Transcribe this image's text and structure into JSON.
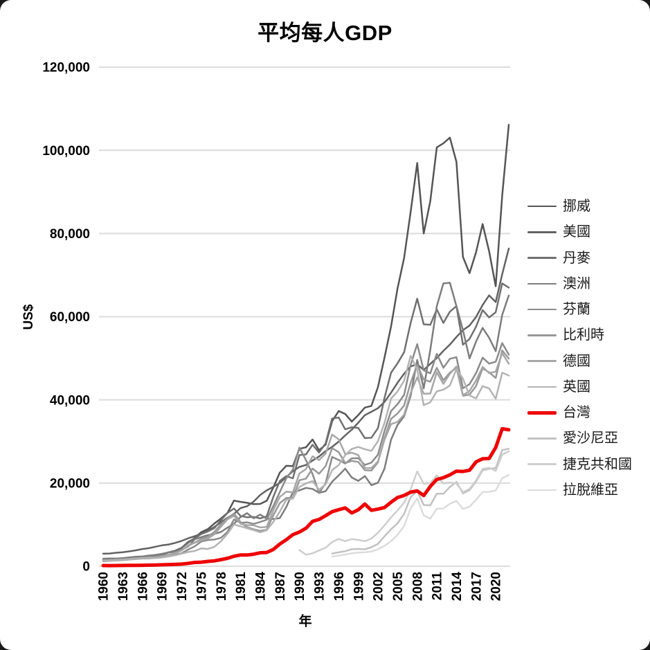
{
  "window": {
    "background": "#ffffff",
    "corner_backdrop": "#1a1a1a"
  },
  "chart_data": {
    "type": "line",
    "title": "平均每人GDP",
    "xlabel": "年",
    "ylabel": "US$",
    "grid": true,
    "grid_color": "#dcdcdc",
    "legend_position": "right",
    "xlim": [
      1960,
      2022
    ],
    "ylim": [
      0,
      120000
    ],
    "x_tick_values": [
      1960,
      1963,
      1966,
      1969,
      1972,
      1975,
      1978,
      1981,
      1984,
      1987,
      1990,
      1993,
      1996,
      1999,
      2002,
      2005,
      2008,
      2011,
      2014,
      2017,
      2020
    ],
    "y_tick_values": [
      0,
      20000,
      40000,
      60000,
      80000,
      100000,
      120000
    ],
    "y_tick_labels": [
      "0",
      "20,000",
      "40,000",
      "60,000",
      "80,000",
      "100,000",
      "120,000"
    ],
    "series": [
      {
        "name": "挪威",
        "color": "#555555",
        "line_width": 2.5,
        "start_year": 1960,
        "highlight": false,
        "values": [
          1441,
          1560,
          1667,
          1775,
          1937,
          2164,
          2323,
          2485,
          2592,
          2799,
          3306,
          3736,
          4430,
          5689,
          6811,
          8204,
          8927,
          10261,
          11461,
          12813,
          15772,
          15478,
          15240,
          14936,
          14977,
          15749,
          18883,
          22506,
          24150,
          24061,
          28243,
          28599,
          30468,
          27881,
          29238,
          34875,
          37322,
          36621,
          34790,
          36346,
          38147,
          38554,
          43084,
          50116,
          57618,
          66810,
          74148,
          85171,
          96944,
          80017,
          87770,
          100711,
          101668,
          103059,
          97200,
          74356,
          70461,
          75497,
          82268,
          75720,
          67330,
          89154,
          106149
        ]
      },
      {
        "name": "美國",
        "color": "#626262",
        "line_width": 2.5,
        "start_year": 1960,
        "highlight": false,
        "values": [
          3007,
          3067,
          3244,
          3375,
          3574,
          3828,
          4146,
          4336,
          4696,
          5032,
          5234,
          5609,
          6094,
          6726,
          7226,
          7801,
          8592,
          9453,
          10565,
          11674,
          12575,
          13976,
          14434,
          15544,
          17121,
          18237,
          19071,
          20039,
          21417,
          22857,
          23889,
          24342,
          25419,
          26387,
          27695,
          28691,
          29968,
          31459,
          32854,
          34515,
          36330,
          37134,
          37998,
          39490,
          41725,
          44123,
          46302,
          48050,
          48570,
          47195,
          48651,
          50066,
          51784,
          53291,
          55124,
          56763,
          57867,
          59915,
          62805,
          65120,
          63528,
          70219,
          76399
        ]
      },
      {
        "name": "丹麥",
        "color": "#707070",
        "line_width": 2.5,
        "start_year": 1960,
        "highlight": false,
        "values": [
          1365,
          1458,
          1582,
          1667,
          1877,
          2096,
          2281,
          2428,
          2577,
          2917,
          3366,
          3706,
          4420,
          5891,
          6655,
          7751,
          8349,
          9146,
          11068,
          12823,
          13886,
          12078,
          11779,
          11871,
          11496,
          12006,
          16606,
          20511,
          21662,
          21145,
          26732,
          26880,
          29216,
          27343,
          29540,
          35520,
          35757,
          32921,
          33420,
          33262,
          30804,
          30897,
          33228,
          40458,
          46512,
          48800,
          51470,
          58487,
          64322,
          58163,
          58041,
          61753,
          58507,
          61191,
          62549,
          53255,
          54664,
          57610,
          61599,
          59822,
          61063,
          68008,
          66983
        ]
      },
      {
        "name": "澳洲",
        "color": "#7d7d7d",
        "line_width": 2.5,
        "start_year": 1960,
        "highlight": false,
        "values": [
          1810,
          1877,
          1852,
          1964,
          2128,
          2278,
          2339,
          2576,
          2724,
          2990,
          3305,
          3496,
          3945,
          4764,
          6473,
          6993,
          7480,
          7767,
          8240,
          9282,
          10195,
          11834,
          12767,
          11519,
          12432,
          11438,
          11367,
          11562,
          14243,
          17797,
          18247,
          18847,
          18592,
          17660,
          18046,
          20320,
          21861,
          23469,
          21319,
          20533,
          21679,
          19491,
          20082,
          23447,
          30431,
          33999,
          36045,
          40960,
          49602,
          42772,
          52022,
          62518,
          68012,
          68150,
          62511,
          56755,
          49971,
          54028,
          57305,
          54941,
          51720,
          60443,
          65100
        ]
      },
      {
        "name": "芬蘭",
        "color": "#8b8b8b",
        "line_width": 2.5,
        "start_year": 1960,
        "highlight": false,
        "values": [
          1179,
          1327,
          1417,
          1522,
          1708,
          1882,
          2010,
          2034,
          1999,
          2216,
          2466,
          2737,
          3128,
          4007,
          4771,
          5944,
          6306,
          6424,
          6820,
          8274,
          11245,
          10456,
          10546,
          10192,
          10634,
          11185,
          14434,
          17832,
          21170,
          23254,
          28507,
          25522,
          22171,
          17608,
          19955,
          26275,
          25546,
          24681,
          25944,
          25979,
          24347,
          24913,
          26823,
          32488,
          37321,
          38969,
          41217,
          48414,
          53401,
          47107,
          46392,
          51082,
          47710,
          49878,
          50260,
          42784,
          43784,
          46412,
          50152,
          48712,
          49161,
          53655,
          50872
        ]
      },
      {
        "name": "比利時",
        "color": "#989898",
        "line_width": 2.5,
        "start_year": 1960,
        "highlight": false,
        "values": [
          1274,
          1349,
          1438,
          1536,
          1708,
          1854,
          1986,
          2126,
          2282,
          2516,
          2762,
          3085,
          3810,
          4872,
          5690,
          6563,
          7090,
          8253,
          10094,
          11517,
          12677,
          10579,
          9402,
          8895,
          8514,
          8778,
          12215,
          15160,
          16412,
          16469,
          20675,
          21070,
          23481,
          22231,
          24080,
          28394,
          27432,
          24812,
          25336,
          25075,
          23099,
          23003,
          25006,
          30743,
          35429,
          36734,
          38644,
          44110,
          48425,
          44880,
          44364,
          47702,
          44720,
          46560,
          47700,
          40991,
          41257,
          43329,
          47545,
          46642,
          45255,
          51875,
          49927
        ]
      },
      {
        "name": "德國",
        "color": "#a6a6a6",
        "line_width": 2.5,
        "start_year": 1960,
        "highlight": false,
        "values": [
          1182,
          1311,
          1399,
          1462,
          1591,
          1733,
          1843,
          1862,
          2003,
          2263,
          2747,
          3194,
          3813,
          5064,
          5639,
          6236,
          6634,
          7682,
          9482,
          11278,
          12138,
          10211,
          9892,
          9846,
          9313,
          9430,
          13452,
          16683,
          17931,
          17766,
          22304,
          23358,
          26438,
          25523,
          27094,
          31658,
          30486,
          26973,
          27289,
          26726,
          23636,
          23607,
          25205,
          30360,
          34166,
          34697,
          36447,
          41640,
          45427,
          41486,
          41532,
          46645,
          43856,
          46286,
          48024,
          41103,
          42136,
          44653,
          47939,
          46468,
          46773,
          51204,
          48718
        ]
      },
      {
        "name": "英國",
        "color": "#b3b3b3",
        "line_width": 2.5,
        "start_year": 1960,
        "highlight": false,
        "values": [
          1398,
          1472,
          1526,
          1613,
          1748,
          1874,
          1987,
          2059,
          1952,
          2101,
          2348,
          2650,
          3030,
          3426,
          3666,
          4300,
          4138,
          4681,
          5977,
          7805,
          10032,
          9599,
          9146,
          8692,
          8179,
          8652,
          10611,
          13119,
          15987,
          16239,
          19095,
          19900,
          20487,
          18389,
          19709,
          23123,
          24332,
          26736,
          28214,
          28670,
          28150,
          27745,
          30057,
          34419,
          40290,
          42030,
          44600,
          50567,
          47287,
          38713,
          39436,
          42038,
          42463,
          43449,
          47426,
          45071,
          41064,
          40361,
          43306,
          42747,
          40285,
          46542,
          45850
        ]
      },
      {
        "name": "台灣",
        "color": "#ee0000",
        "line_width": 5,
        "start_year": 1960,
        "highlight": true,
        "values": [
          163,
          152,
          162,
          178,
          202,
          217,
          237,
          267,
          304,
          345,
          397,
          443,
          522,
          695,
          920,
          985,
          1158,
          1301,
          1577,
          1920,
          2389,
          2720,
          2699,
          2903,
          3224,
          3314,
          4036,
          5350,
          6370,
          7614,
          8216,
          9136,
          10778,
          11250,
          12160,
          13119,
          13597,
          14020,
          12820,
          13585,
          14941,
          13448,
          13750,
          14120,
          15388,
          16532,
          17026,
          17814,
          18131,
          16988,
          19197,
          20866,
          21295,
          21973,
          22874,
          22780,
          23091,
          25080,
          25838,
          25908,
          28549,
          33059,
          32811
        ]
      },
      {
        "name": "愛沙尼亞",
        "color": "#c1c1c1",
        "line_width": 2.5,
        "start_year": 1995,
        "highlight": false,
        "values": [
          3043,
          3341,
          3611,
          4096,
          4165,
          4070,
          4573,
          5371,
          7182,
          8912,
          10330,
          12592,
          16603,
          18094,
          14725,
          14641,
          17454,
          17432,
          19078,
          20264,
          17510,
          18292,
          20380,
          23063,
          23424,
          23595,
          27943,
          28247
        ]
      },
      {
        "name": "捷克共和國",
        "color": "#cecece",
        "line_width": 2.5,
        "start_year": 1990,
        "highlight": false,
        "values": [
          3902,
          2785,
          3103,
          3788,
          4467,
          5824,
          6542,
          6043,
          6527,
          6327,
          6029,
          6636,
          8053,
          9804,
          11750,
          13430,
          15290,
          18476,
          22806,
          19862,
          19960,
          21871,
          19870,
          20133,
          19891,
          17830,
          18596,
          20640,
          23424,
          23665,
          22933,
          26809,
          27638
        ]
      },
      {
        "name": "拉脫維亞",
        "color": "#dcdcdc",
        "line_width": 2.5,
        "start_year": 1995,
        "highlight": false,
        "values": [
          2330,
          2560,
          2833,
          3104,
          3297,
          3352,
          3525,
          4087,
          4888,
          6049,
          7550,
          9679,
          13907,
          16323,
          12219,
          11447,
          13829,
          13903,
          15008,
          15713,
          13789,
          14333,
          15963,
          17866,
          17885,
          18200,
          21148,
          21947
        ]
      }
    ]
  }
}
